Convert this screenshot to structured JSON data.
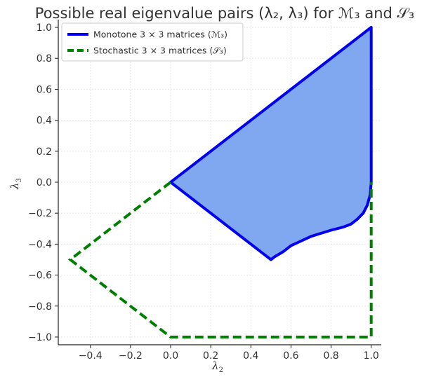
{
  "chart_data": {
    "type": "area",
    "title": "Possible real eigenvalue pairs (λ₂, λ₃) for ℳ₃ and 𝒮₃",
    "xlabel": "λ",
    "xlabel_sub": "2",
    "ylabel": "λ",
    "ylabel_sub": "3",
    "xlim": [
      -0.56,
      1.05
    ],
    "ylim": [
      -1.05,
      1.05
    ],
    "xticks": [
      -0.4,
      -0.2,
      0.0,
      0.2,
      0.4,
      0.6,
      0.8,
      1.0
    ],
    "xtick_labels": [
      "−0.4",
      "−0.2",
      "0.0",
      "0.2",
      "0.4",
      "0.6",
      "0.8",
      "1.0"
    ],
    "yticks": [
      -1.0,
      -0.8,
      -0.6,
      -0.4,
      -0.2,
      0.0,
      0.2,
      0.4,
      0.6,
      0.8,
      1.0
    ],
    "ytick_labels": [
      "−1.0",
      "−0.8",
      "−0.6",
      "−0.4",
      "−0.2",
      "0.0",
      "0.2",
      "0.4",
      "0.6",
      "0.8",
      "1.0"
    ],
    "grid": true,
    "legend_position": "top-left",
    "series": [
      {
        "name": "Monotone 3 × 3 matrices (ℳ₃)",
        "style": "solid",
        "color": "#0000ee",
        "fill": "#80a8f0",
        "x": [
          0.0,
          1.0,
          1.0,
          0.995,
          0.98,
          0.96,
          0.93,
          0.9,
          0.86,
          0.8,
          0.75,
          0.7,
          0.65,
          0.6,
          0.56,
          0.52,
          0.5,
          0.0
        ],
        "y": [
          0.0,
          1.0,
          0.0,
          -0.08,
          -0.15,
          -0.2,
          -0.24,
          -0.27,
          -0.29,
          -0.31,
          -0.33,
          -0.35,
          -0.38,
          -0.41,
          -0.45,
          -0.48,
          -0.5,
          0.0
        ]
      },
      {
        "name": "Stochastic 3 × 3 matrices (𝒮₃)",
        "style": "dashed",
        "color": "#008000",
        "x": [
          0.0,
          -0.5,
          0.0,
          1.0,
          1.0
        ],
        "y": [
          0.0,
          -0.5,
          -1.0,
          -1.0,
          0.0
        ]
      }
    ]
  }
}
